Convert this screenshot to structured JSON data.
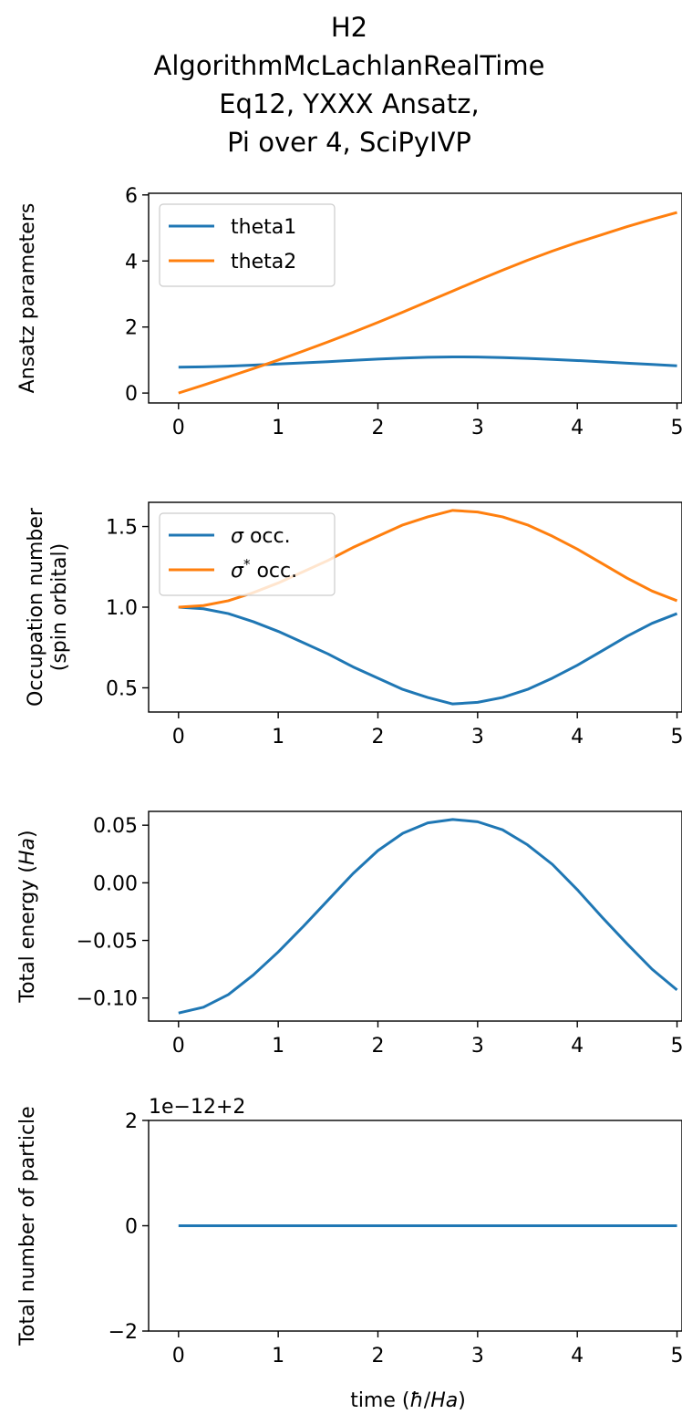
{
  "title_lines": [
    "H2",
    "AlgorithmMcLachlanRealTime",
    "Eq12, YXXX Ansatz,",
    "Pi over 4, SciPyIVP"
  ],
  "colors": {
    "blue": "#1f77b4",
    "orange": "#ff7f0e"
  },
  "chart_data": [
    {
      "type": "line",
      "ylabel": [
        "Ansatz parameters"
      ],
      "xlabel": "",
      "xlim": [
        -0.3,
        5.05
      ],
      "ylim": [
        -0.3,
        6.05
      ],
      "xticks": [
        0,
        1,
        2,
        3,
        4,
        5
      ],
      "xtick_labels": [
        "0",
        "1",
        "2",
        "3",
        "4",
        "5"
      ],
      "yticks": [
        0,
        2,
        4,
        6
      ],
      "ytick_labels": [
        "0",
        "2",
        "4",
        "6"
      ],
      "offset_text": "",
      "legend": "upper left",
      "x": [
        0,
        0.25,
        0.5,
        0.75,
        1.0,
        1.25,
        1.5,
        1.75,
        2.0,
        2.25,
        2.5,
        2.75,
        3.0,
        3.25,
        3.5,
        3.75,
        4.0,
        4.25,
        4.5,
        4.75,
        5.0
      ],
      "series": [
        {
          "name": "theta1",
          "color": "blue",
          "values": [
            0.785,
            0.795,
            0.815,
            0.845,
            0.88,
            0.915,
            0.95,
            0.99,
            1.03,
            1.06,
            1.085,
            1.095,
            1.09,
            1.075,
            1.05,
            1.02,
            0.985,
            0.945,
            0.905,
            0.865,
            0.825
          ]
        },
        {
          "name": "theta2",
          "color": "orange",
          "values": [
            0.0,
            0.24,
            0.49,
            0.74,
            1.0,
            1.27,
            1.55,
            1.84,
            2.14,
            2.45,
            2.77,
            3.09,
            3.41,
            3.72,
            4.02,
            4.3,
            4.56,
            4.8,
            5.04,
            5.26,
            5.47
          ]
        }
      ]
    },
    {
      "type": "line",
      "ylabel": [
        "Occupation number",
        "(spin orbital)"
      ],
      "xlabel": "",
      "xlim": [
        -0.3,
        5.05
      ],
      "ylim": [
        0.35,
        1.65
      ],
      "xticks": [
        0,
        1,
        2,
        3,
        4,
        5
      ],
      "xtick_labels": [
        "0",
        "1",
        "2",
        "3",
        "4",
        "5"
      ],
      "yticks": [
        0.5,
        1.0,
        1.5
      ],
      "ytick_labels": [
        "0.5",
        "1.0",
        "1.5"
      ],
      "offset_text": "",
      "legend": "upper left",
      "x": [
        0,
        0.25,
        0.5,
        0.75,
        1.0,
        1.25,
        1.5,
        1.75,
        2.0,
        2.25,
        2.5,
        2.75,
        3.0,
        3.25,
        3.5,
        3.75,
        4.0,
        4.25,
        4.5,
        4.75,
        5.0
      ],
      "series": [
        {
          "name": "σ occ.",
          "color": "blue",
          "values": [
            1.0,
            0.99,
            0.96,
            0.91,
            0.85,
            0.78,
            0.71,
            0.63,
            0.56,
            0.49,
            0.44,
            0.4,
            0.41,
            0.44,
            0.49,
            0.56,
            0.64,
            0.73,
            0.82,
            0.9,
            0.96
          ]
        },
        {
          "name": "σ* occ.",
          "color": "orange",
          "values": [
            1.0,
            1.01,
            1.04,
            1.09,
            1.15,
            1.22,
            1.29,
            1.37,
            1.44,
            1.51,
            1.56,
            1.6,
            1.59,
            1.56,
            1.51,
            1.44,
            1.36,
            1.27,
            1.18,
            1.1,
            1.04
          ]
        }
      ]
    },
    {
      "type": "line",
      "ylabel": [
        "Total energy (Ha)"
      ],
      "xlabel": "",
      "xlim": [
        -0.3,
        5.05
      ],
      "ylim": [
        -0.12,
        0.062
      ],
      "xticks": [
        0,
        1,
        2,
        3,
        4,
        5
      ],
      "xtick_labels": [
        "0",
        "1",
        "2",
        "3",
        "4",
        "5"
      ],
      "yticks": [
        -0.1,
        -0.05,
        0.0,
        0.05
      ],
      "ytick_labels": [
        "−0.10",
        "−0.05",
        "0.00",
        "0.05"
      ],
      "offset_text": "",
      "legend": "",
      "x": [
        0,
        0.25,
        0.5,
        0.75,
        1.0,
        1.25,
        1.5,
        1.75,
        2.0,
        2.25,
        2.5,
        2.75,
        3.0,
        3.25,
        3.5,
        3.75,
        4.0,
        4.25,
        4.5,
        4.75,
        5.0
      ],
      "series": [
        {
          "name": "",
          "color": "blue",
          "values": [
            -0.113,
            -0.108,
            -0.097,
            -0.08,
            -0.06,
            -0.038,
            -0.015,
            0.008,
            0.028,
            0.043,
            0.052,
            0.055,
            0.053,
            0.046,
            0.033,
            0.016,
            -0.006,
            -0.03,
            -0.053,
            -0.075,
            -0.093
          ]
        }
      ]
    },
    {
      "type": "line",
      "ylabel": [
        "Total number of particle"
      ],
      "xlabel": "time (ħ/Ha)",
      "xlim": [
        -0.3,
        5.05
      ],
      "ylim": [
        -2,
        2
      ],
      "xticks": [
        0,
        1,
        2,
        3,
        4,
        5
      ],
      "xtick_labels": [
        "0",
        "1",
        "2",
        "3",
        "4",
        "5"
      ],
      "yticks": [
        -2,
        0,
        2
      ],
      "ytick_labels": [
        "−2",
        "0",
        "2"
      ],
      "offset_text": "1e−12+2",
      "legend": "",
      "x": [
        0,
        5
      ],
      "series": [
        {
          "name": "",
          "color": "blue",
          "values": [
            0,
            0
          ]
        }
      ]
    }
  ]
}
